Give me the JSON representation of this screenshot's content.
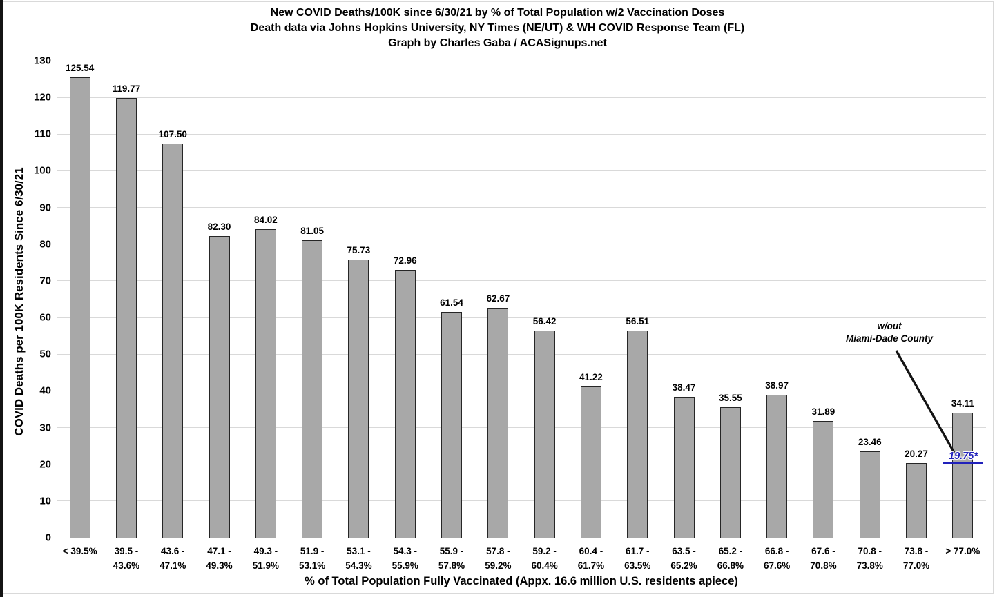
{
  "chart_data": {
    "type": "bar",
    "title": "New COVID Deaths/100K since 6/30/21 by % of Total Population w/2 Vaccination Doses",
    "subtitle": "Death data via Johns Hopkins University, NY Times (NE/UT) & WH COVID Response Team (FL)",
    "credit": "Graph by Charles Gaba / ACASignups.net",
    "xlabel": "% of Total Population Fully Vaccinated (Appx. 16.6 million U.S. residents apiece)",
    "ylabel": "COVID Deaths per 100K Residents Since 6/30/21",
    "ylim": [
      0,
      130
    ],
    "ytick_step": 10,
    "grid": "horizontal",
    "legend": "none",
    "colors": {
      "bar_fill": "#a8a8a8",
      "bar_border": "#262626",
      "gridline": "#d9d9d9",
      "text": "#000000",
      "annotation_value": "#2121bb",
      "annotation_line": "#141414"
    },
    "categories": [
      "< 39.5%",
      "39.5 -\n43.6%",
      "43.6 -\n47.1%",
      "47.1 -\n49.3%",
      "49.3 -\n51.9%",
      "51.9 -\n53.1%",
      "53.1 -\n54.3%",
      "54.3 -\n55.9%",
      "55.9 -\n57.8%",
      "57.8 -\n59.2%",
      "59.2 -\n60.4%",
      "60.4 -\n61.7%",
      "61.7 -\n63.5%",
      "63.5 -\n65.2%",
      "65.2 -\n66.8%",
      "66.8 -\n67.6%",
      "67.6 -\n70.8%",
      "70.8 -\n73.8%",
      "73.8 -\n77.0%",
      "> 77.0%"
    ],
    "values": [
      125.54,
      119.77,
      107.5,
      82.3,
      84.02,
      81.05,
      75.73,
      72.96,
      61.54,
      62.67,
      56.42,
      41.22,
      56.51,
      38.47,
      35.55,
      38.97,
      31.89,
      23.46,
      20.27,
      34.11
    ],
    "value_labels": [
      "125.54",
      "119.77",
      "107.50",
      "82.30",
      "84.02",
      "81.05",
      "75.73",
      "72.96",
      "61.54",
      "62.67",
      "56.42",
      "41.22",
      "56.51",
      "38.47",
      "35.55",
      "38.97",
      "31.89",
      "23.46",
      "20.27",
      "34.11"
    ],
    "annotation": {
      "line1": "w/out",
      "line2": "Miami-Dade County",
      "value_label": "19.75*"
    }
  }
}
